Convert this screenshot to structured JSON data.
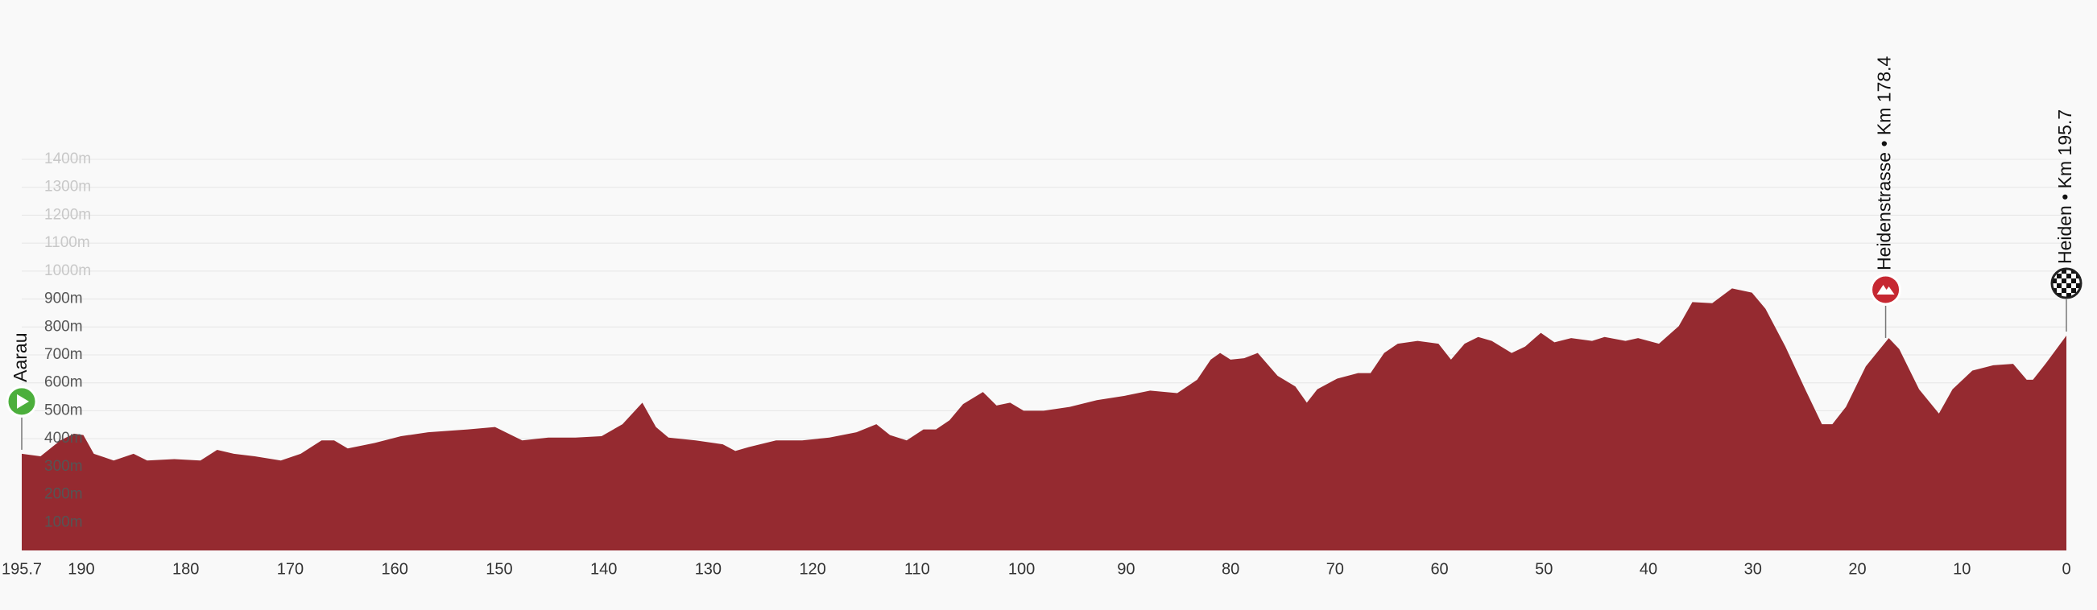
{
  "chart_data": {
    "type": "area",
    "color": "#952a30",
    "x": [
      195.7,
      193.9,
      192.0,
      190.7,
      189.8,
      188.8,
      186.9,
      185.0,
      183.7,
      181.1,
      178.6,
      177.0,
      175.4,
      173.4,
      170.9,
      169.0,
      167.0,
      165.8,
      164.5,
      161.9,
      159.4,
      156.8,
      153.0,
      150.4,
      147.8,
      145.3,
      142.7,
      140.2,
      138.2,
      136.3,
      135.0,
      133.8,
      131.2,
      128.6,
      127.4,
      126.1,
      123.5,
      121.0,
      118.4,
      115.8,
      113.9,
      112.6,
      111.0,
      109.4,
      108.2,
      106.9,
      105.6,
      103.7,
      102.4,
      101.1,
      99.8,
      97.9,
      95.4,
      92.8,
      90.2,
      87.7,
      85.1,
      83.2,
      81.9,
      81.0,
      80.0,
      78.7,
      77.4,
      75.5,
      73.8,
      72.7,
      71.7,
      69.8,
      67.8,
      66.6,
      65.3,
      64.0,
      62.1,
      60.1,
      58.9,
      57.6,
      56.3,
      55.0,
      53.1,
      51.8,
      50.3,
      49.0,
      47.4,
      45.4,
      44.2,
      42.2,
      41.0,
      39.0,
      37.1,
      35.8,
      33.9,
      32.0,
      30.1,
      28.8,
      26.9,
      25.0,
      23.4,
      22.4,
      21.1,
      19.2,
      17.0,
      16.0,
      14.1,
      12.2,
      10.9,
      9.0,
      7.0,
      5.1,
      3.8,
      3.2,
      1.9,
      0.0
    ],
    "values": [
      346,
      337,
      394,
      418,
      413,
      346,
      322,
      346,
      322,
      327,
      322,
      360,
      346,
      337,
      322,
      346,
      394,
      394,
      365,
      385,
      409,
      423,
      433,
      442,
      394,
      404,
      404,
      409,
      452,
      529,
      442,
      404,
      394,
      380,
      356,
      370,
      394,
      394,
      404,
      423,
      452,
      413,
      394,
      433,
      433,
      466,
      524,
      567,
      519,
      529,
      500,
      500,
      514,
      538,
      553,
      572,
      563,
      611,
      683,
      707,
      683,
      688,
      707,
      625,
      587,
      529,
      577,
      615,
      635,
      635,
      707,
      740,
      750,
      740,
      683,
      740,
      764,
      750,
      707,
      730,
      779,
      745,
      760,
      750,
      764,
      750,
      760,
      740,
      803,
      889,
      885,
      938,
      923,
      865,
      730,
      577,
      452,
      452,
      514,
      659,
      760,
      721,
      577,
      490,
      577,
      644,
      663,
      668,
      611,
      611,
      673,
      769
    ],
    "xlim": [
      195.7,
      0
    ],
    "xticks": [
      195.7,
      190,
      180,
      170,
      160,
      150,
      140,
      130,
      120,
      110,
      100,
      90,
      80,
      70,
      60,
      50,
      40,
      30,
      20,
      10,
      0
    ],
    "ylim": [
      0,
      1400
    ],
    "yticks": [
      {
        "value": 100,
        "label": "100m"
      },
      {
        "value": 200,
        "label": "200m"
      },
      {
        "value": 300,
        "label": "300m"
      },
      {
        "value": 400,
        "label": "400m"
      },
      {
        "value": 500,
        "label": "500m"
      },
      {
        "value": 600,
        "label": "600m"
      },
      {
        "value": 700,
        "label": "700m"
      },
      {
        "value": 800,
        "label": "800m"
      },
      {
        "value": 900,
        "label": "900m"
      },
      {
        "value": 1000,
        "label": "1000m"
      },
      {
        "value": 1100,
        "label": "1100m"
      },
      {
        "value": 1200,
        "label": "1200m"
      },
      {
        "value": 1300,
        "label": "1300m"
      },
      {
        "value": 1400,
        "label": "1400m"
      }
    ],
    "grid": true,
    "annotations": [
      {
        "label": "Aarau",
        "x": 195.7
      },
      {
        "label": "Heidenstrasse • Km 178.4",
        "x": 17.3
      },
      {
        "label": "Heiden • Km 195.7",
        "x": 0
      }
    ]
  }
}
